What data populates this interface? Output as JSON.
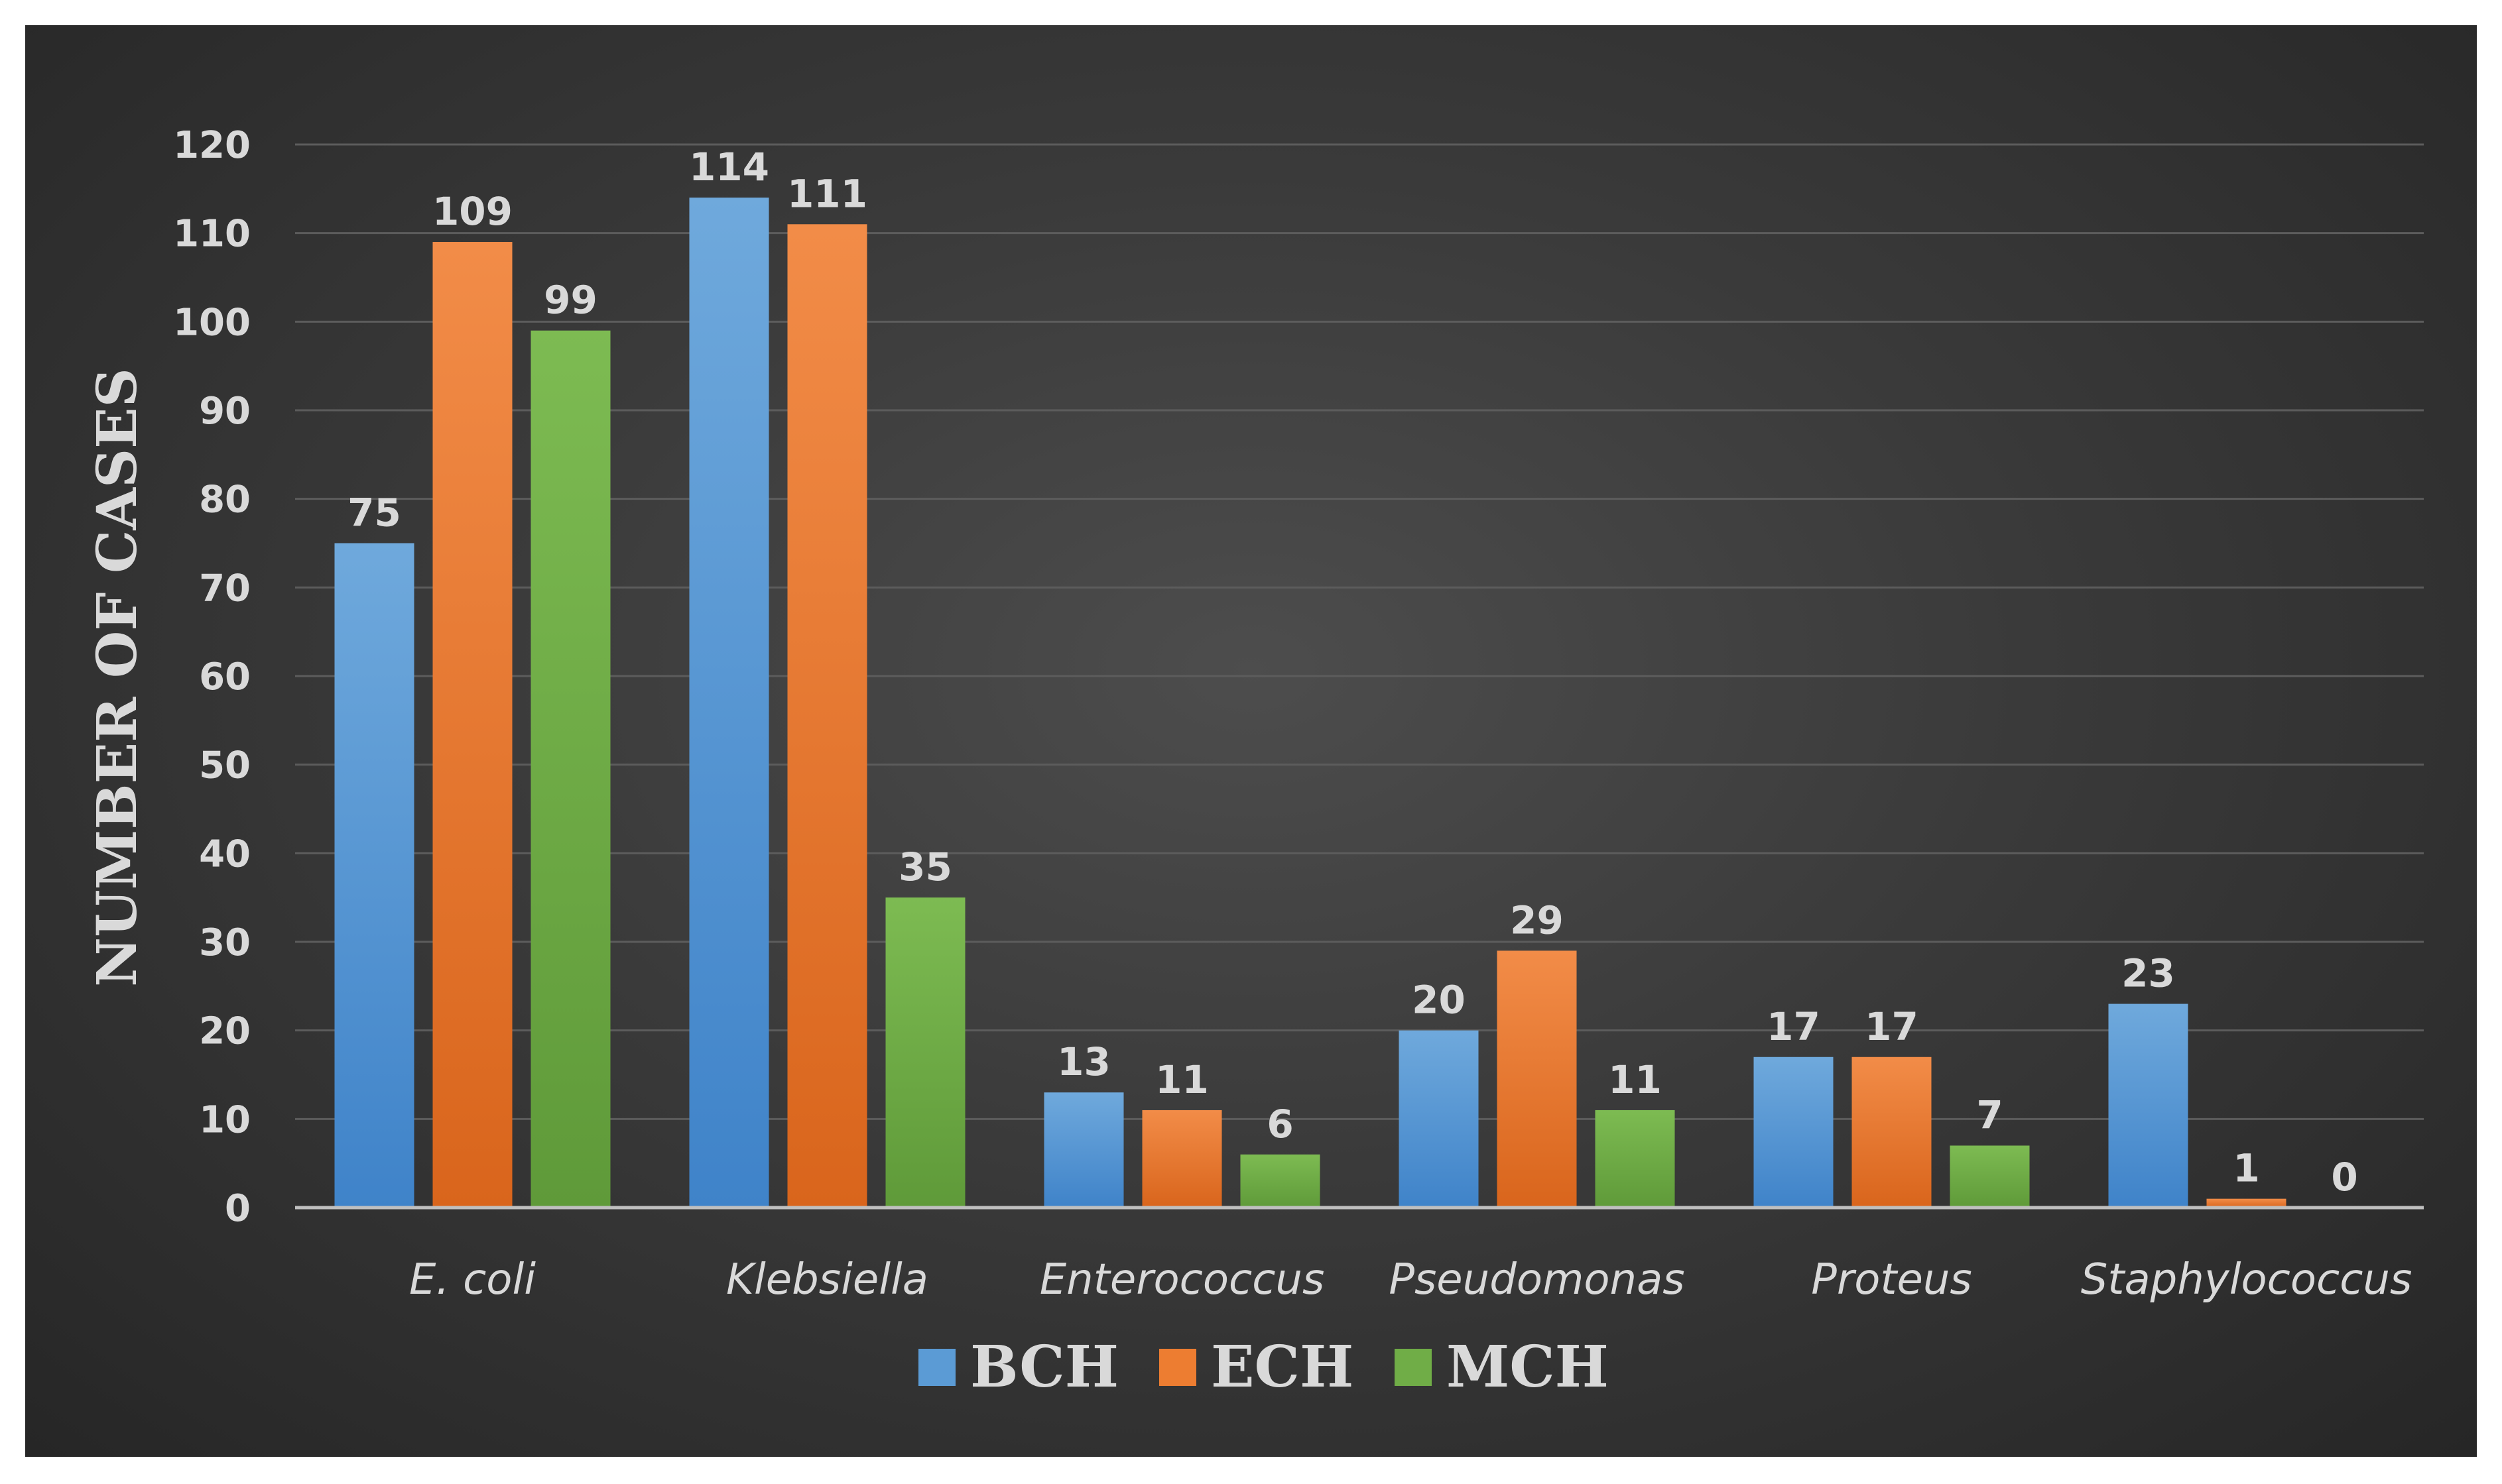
{
  "chart_data": {
    "type": "bar",
    "title": "",
    "xlabel": "",
    "ylabel": "NUMBER OF CASES",
    "ylim": [
      0,
      120
    ],
    "yticks": [
      0,
      10,
      20,
      30,
      40,
      50,
      60,
      70,
      80,
      90,
      100,
      110,
      120
    ],
    "grid": true,
    "legend_position": "bottom",
    "categories": [
      "E. coli",
      "Klebsiella",
      "Enterococcus",
      "Pseudomonas",
      "Proteus",
      "Staphylococcus"
    ],
    "series": [
      {
        "name": "BCH",
        "color": "#5b9bd5",
        "values": [
          75,
          114,
          13,
          20,
          17,
          23
        ]
      },
      {
        "name": "ECH",
        "color": "#ed7d31",
        "values": [
          109,
          111,
          11,
          29,
          17,
          1
        ]
      },
      {
        "name": "MCH",
        "color": "#70ad47",
        "values": [
          99,
          35,
          6,
          11,
          7,
          0
        ]
      }
    ]
  }
}
